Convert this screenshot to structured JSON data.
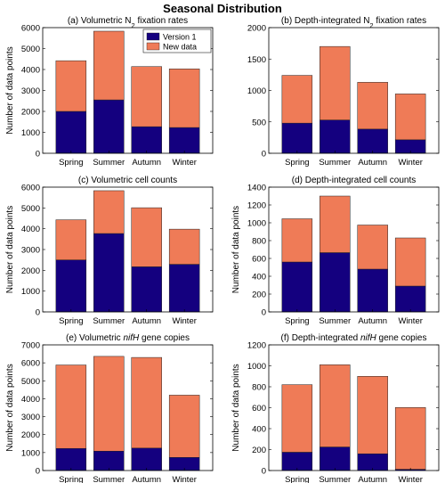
{
  "title": "Seasonal Distribution",
  "colors": {
    "version1": "#14007f",
    "new_data": "#ef7b57",
    "axis": "#000000"
  },
  "chart_data": [
    {
      "type": "bar",
      "stacked": true,
      "title_parts": [
        {
          "t": "(a) Volumetric N"
        },
        {
          "t": "2",
          "sub": true
        },
        {
          "t": " fixation rates"
        }
      ],
      "categories": [
        "Spring",
        "Summer",
        "Autumn",
        "Winter"
      ],
      "ylabel": "Number of data points",
      "ylim": [
        0,
        6000
      ],
      "yticks": [
        0,
        1000,
        2000,
        3000,
        4000,
        5000,
        6000
      ],
      "series": [
        {
          "name": "Version 1",
          "values": [
            2000,
            2550,
            1270,
            1230
          ]
        },
        {
          "name": "New data",
          "values": [
            2420,
            3280,
            2870,
            2800
          ]
        }
      ],
      "legend": "top-right"
    },
    {
      "type": "bar",
      "stacked": true,
      "title_parts": [
        {
          "t": "(b) Depth-integrated N"
        },
        {
          "t": "2",
          "sub": true
        },
        {
          "t": " fixation rates"
        }
      ],
      "categories": [
        "Spring",
        "Summer",
        "Autumn",
        "Winter"
      ],
      "ylabel": "",
      "ylim": [
        0,
        2000
      ],
      "yticks": [
        0,
        500,
        1000,
        1500,
        2000
      ],
      "series": [
        {
          "values": [
            480,
            530,
            385,
            215
          ]
        },
        {
          "values": [
            760,
            1170,
            745,
            730
          ]
        }
      ]
    },
    {
      "type": "bar",
      "stacked": true,
      "title_parts": [
        {
          "t": "(c) Volumetric cell counts"
        }
      ],
      "categories": [
        "Spring",
        "Summer",
        "Autumn",
        "Winter"
      ],
      "ylabel": "Number of data points",
      "ylim": [
        0,
        6000
      ],
      "yticks": [
        0,
        1000,
        2000,
        3000,
        4000,
        5000,
        6000
      ],
      "series": [
        {
          "values": [
            2500,
            3770,
            2170,
            2290
          ]
        },
        {
          "values": [
            1930,
            2060,
            2840,
            1690
          ]
        }
      ]
    },
    {
      "type": "bar",
      "stacked": true,
      "title_parts": [
        {
          "t": "(d) Depth-integrated cell counts"
        }
      ],
      "categories": [
        "Spring",
        "Summer",
        "Autumn",
        "Winter"
      ],
      "ylabel": "Number of data points",
      "ylim": [
        0,
        1400
      ],
      "yticks": [
        0,
        200,
        400,
        600,
        800,
        1000,
        1200,
        1400
      ],
      "series": [
        {
          "values": [
            560,
            665,
            480,
            290
          ]
        },
        {
          "values": [
            485,
            635,
            495,
            540
          ]
        }
      ]
    },
    {
      "type": "bar",
      "stacked": true,
      "title_parts": [
        {
          "t": "(e) Volumetric "
        },
        {
          "t": "nifH",
          "italic": true
        },
        {
          "t": " gene copies"
        }
      ],
      "categories": [
        "Spring",
        "Summer",
        "Autumn",
        "Winter"
      ],
      "ylabel": "Number of data points",
      "ylim": [
        0,
        7000
      ],
      "yticks": [
        0,
        1000,
        2000,
        3000,
        4000,
        5000,
        6000,
        7000
      ],
      "series": [
        {
          "values": [
            1230,
            1080,
            1250,
            730
          ]
        },
        {
          "values": [
            4650,
            5280,
            5050,
            3470
          ]
        }
      ]
    },
    {
      "type": "bar",
      "stacked": true,
      "title_parts": [
        {
          "t": "(f) Depth-integrated "
        },
        {
          "t": "nifH",
          "italic": true
        },
        {
          "t": " gene copies"
        }
      ],
      "categories": [
        "Spring",
        "Summer",
        "Autumn",
        "Winter"
      ],
      "ylabel": "Number of data points",
      "ylim": [
        0,
        1200
      ],
      "yticks": [
        0,
        200,
        400,
        600,
        800,
        1000,
        1200
      ],
      "series": [
        {
          "values": [
            175,
            225,
            160,
            12
          ]
        },
        {
          "values": [
            645,
            785,
            740,
            590
          ]
        }
      ]
    }
  ]
}
